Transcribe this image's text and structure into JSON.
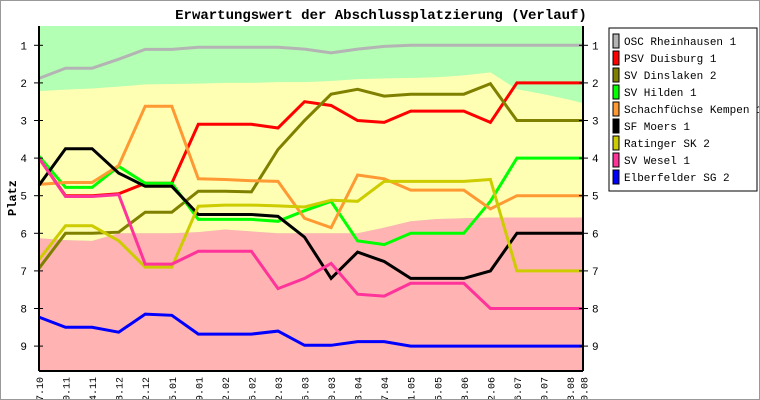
{
  "chart_data": {
    "type": "line",
    "title": "Erwartungswert der Abschlussplatzierung (Verlauf)",
    "xlabel": "",
    "ylabel": "Platz",
    "ylim": [
      1,
      9
    ],
    "y_inverted": true,
    "yticks": [
      "1",
      "2",
      "3",
      "4",
      "5",
      "6",
      "7",
      "8",
      "9"
    ],
    "x": [
      "27.10",
      "10.11",
      "24.11",
      "08.12",
      "22.12",
      "05.01",
      "19.01",
      "02.02",
      "16.02",
      "02.03",
      "16.03",
      "30.03",
      "13.04",
      "27.04",
      "11.05",
      "25.05",
      "08.06",
      "22.06",
      "06.07",
      "20.07",
      "03.08",
      "10.08"
    ],
    "x_day_offsets": [
      0,
      14,
      28,
      42,
      56,
      70,
      84,
      98,
      112,
      126,
      140,
      154,
      168,
      182,
      196,
      210,
      224,
      238,
      252,
      266,
      280,
      287
    ],
    "legend_position": "right",
    "bands": {
      "colors": {
        "top": "#b3ffb3",
        "middle": "#ffffb3",
        "bottom": "#ffb3b3"
      },
      "upper_boundary": [
        2.22,
        2.18,
        2.15,
        2.1,
        2.04,
        2.03,
        2.02,
        2.0,
        2.0,
        1.98,
        1.98,
        1.95,
        1.9,
        1.88,
        1.87,
        1.85,
        1.8,
        1.72,
        2.17,
        2.3,
        2.45,
        2.54
      ],
      "lower_boundary": [
        6.13,
        6.18,
        6.2,
        6.0,
        6.0,
        6.0,
        5.97,
        5.9,
        5.95,
        6.0,
        6.0,
        6.0,
        6.0,
        5.85,
        5.68,
        5.62,
        5.6,
        5.58,
        5.58,
        5.58,
        5.58,
        5.58
      ]
    },
    "series": [
      {
        "name": "OSC Rheinhausen 1",
        "color": "#b4b4b4",
        "values": [
          1.88,
          1.61,
          1.61,
          1.37,
          1.11,
          1.11,
          1.05,
          1.05,
          1.05,
          1.05,
          1.1,
          1.2,
          1.1,
          1.03,
          1,
          1,
          1,
          1,
          1,
          1,
          1,
          1
        ]
      },
      {
        "name": "PSV Duisburg 1",
        "color": "#ff0000",
        "values": [
          4.0,
          5.0,
          5.0,
          4.95,
          4.67,
          4.67,
          3.1,
          3.1,
          3.1,
          3.2,
          2.5,
          2.6,
          3.0,
          3.05,
          2.75,
          2.75,
          2.75,
          3.05,
          2.0,
          2.0,
          2.0,
          2.0
        ]
      },
      {
        "name": "SV Dinslaken 2",
        "color": "#808000",
        "values": [
          6.93,
          6.0,
          6.0,
          5.97,
          5.44,
          5.44,
          4.88,
          4.88,
          4.9,
          3.77,
          3.0,
          2.3,
          2.17,
          2.35,
          2.3,
          2.3,
          2.3,
          2.02,
          3.0,
          3.0,
          3.0,
          3.0
        ]
      },
      {
        "name": "SV Hilden 1",
        "color": "#00ff00",
        "values": [
          3.95,
          4.78,
          4.78,
          4.22,
          4.67,
          4.67,
          5.63,
          5.63,
          5.63,
          5.68,
          5.4,
          5.15,
          6.2,
          6.3,
          6.0,
          6.0,
          6.0,
          5.15,
          4.0,
          4.0,
          4.0,
          4.0
        ]
      },
      {
        "name": "Schachfüchse Kempen 1",
        "color": "#ff9933",
        "values": [
          4.7,
          4.65,
          4.65,
          4.2,
          2.62,
          2.62,
          4.55,
          4.57,
          4.6,
          4.62,
          5.6,
          5.85,
          4.45,
          4.55,
          4.85,
          4.85,
          4.85,
          5.35,
          5.0,
          5.0,
          5.0,
          5.0
        ]
      },
      {
        "name": "SF Moers 1",
        "color": "#000000",
        "values": [
          4.72,
          3.75,
          3.75,
          4.4,
          4.75,
          4.75,
          5.5,
          5.5,
          5.5,
          5.55,
          6.1,
          7.2,
          6.5,
          6.75,
          7.2,
          7.2,
          7.2,
          7.0,
          6.0,
          6.0,
          6.0,
          6.0
        ]
      },
      {
        "name": "Ratinger SK 2",
        "color": "#cccc00",
        "values": [
          6.7,
          5.8,
          5.8,
          6.2,
          6.9,
          6.9,
          5.28,
          5.25,
          5.25,
          5.27,
          5.3,
          5.12,
          5.15,
          4.62,
          4.62,
          4.62,
          4.62,
          4.57,
          7.0,
          7.0,
          7.0,
          7.0
        ]
      },
      {
        "name": "SV Wesel 1",
        "color": "#ff3399",
        "values": [
          4.0,
          5.02,
          5.02,
          4.97,
          6.82,
          6.82,
          6.48,
          6.48,
          6.48,
          7.47,
          7.2,
          6.8,
          7.62,
          7.67,
          7.33,
          7.33,
          7.33,
          8.0,
          8.0,
          8.0,
          8.0,
          8.0
        ]
      },
      {
        "name": "Elberfelder SG 2",
        "color": "#0000ff",
        "values": [
          8.23,
          8.5,
          8.5,
          8.63,
          8.15,
          8.18,
          8.68,
          8.68,
          8.68,
          8.6,
          8.98,
          8.98,
          8.88,
          8.88,
          9.0,
          9.0,
          9.0,
          9.0,
          9.0,
          9.0,
          9.0,
          9.0
        ]
      }
    ]
  }
}
